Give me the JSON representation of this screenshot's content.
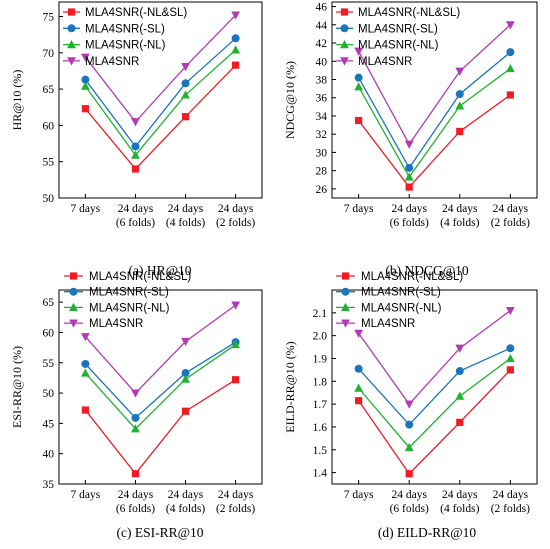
{
  "x_categories": [
    [
      "7 days"
    ],
    [
      "24 days",
      "(6 folds)"
    ],
    [
      "24 days",
      "(4 folds)"
    ],
    [
      "24 days",
      "(2 folds)"
    ]
  ],
  "series_styles": [
    {
      "name": "MLA4SNR(-NL&SL)",
      "color": "#ee1c25",
      "marker": "square"
    },
    {
      "name": "MLA4SNR(-SL)",
      "color": "#1a75bc",
      "marker": "circle"
    },
    {
      "name": "MLA4SNR(-NL)",
      "color": "#20b230",
      "marker": "triangle-up"
    },
    {
      "name": "MLA4SNR",
      "color": "#b33ab3",
      "marker": "triangle-down"
    }
  ],
  "chart_data": [
    {
      "type": "line",
      "title": "(a) HR@10",
      "xlabel": "",
      "ylabel": "HR@10 (%)",
      "ylim": [
        50,
        77
      ],
      "yticks": [
        50,
        55,
        60,
        65,
        70,
        75
      ],
      "ytick_labels": [
        "50",
        "55",
        "60",
        "65",
        "70",
        "75"
      ],
      "legend": "top-left",
      "series": [
        {
          "name": "MLA4SNR(-NL&SL)",
          "values": [
            62.3,
            54.0,
            61.2,
            68.3
          ]
        },
        {
          "name": "MLA4SNR(-SL)",
          "values": [
            66.3,
            57.1,
            65.8,
            72.0
          ]
        },
        {
          "name": "MLA4SNR(-NL)",
          "values": [
            65.4,
            55.9,
            64.2,
            70.4
          ]
        },
        {
          "name": "MLA4SNR",
          "values": [
            69.4,
            60.5,
            68.1,
            75.2
          ]
        }
      ]
    },
    {
      "type": "line",
      "title": "(b) NDCG@10",
      "xlabel": "",
      "ylabel": "NDCG@10 (%)",
      "ylim": [
        25,
        46.5
      ],
      "yticks": [
        26,
        28,
        30,
        32,
        34,
        36,
        38,
        40,
        42,
        44,
        46
      ],
      "ytick_labels": [
        "26",
        "28",
        "30",
        "32",
        "34",
        "36",
        "38",
        "40",
        "42",
        "44",
        "46"
      ],
      "legend": "top-left",
      "series": [
        {
          "name": "MLA4SNR(-NL&SL)",
          "values": [
            33.5,
            26.2,
            32.3,
            36.3
          ]
        },
        {
          "name": "MLA4SNR(-SL)",
          "values": [
            38.2,
            28.3,
            36.4,
            41.0
          ]
        },
        {
          "name": "MLA4SNR(-NL)",
          "values": [
            37.2,
            27.3,
            35.1,
            39.2
          ]
        },
        {
          "name": "MLA4SNR",
          "values": [
            41.1,
            30.9,
            38.9,
            44.0
          ]
        }
      ]
    },
    {
      "type": "line",
      "title": "(c) ESI-RR@10",
      "xlabel": "",
      "ylabel": "ESI-RR@10 (%)",
      "ylim": [
        35,
        67
      ],
      "yticks": [
        35,
        40,
        45,
        50,
        55,
        60,
        65
      ],
      "ytick_labels": [
        "35",
        "40",
        "45",
        "50",
        "55",
        "60",
        "65"
      ],
      "legend": "top-left",
      "series": [
        {
          "name": "MLA4SNR(-NL&SL)",
          "values": [
            47.2,
            36.7,
            47.0,
            52.2
          ]
        },
        {
          "name": "MLA4SNR(-SL)",
          "values": [
            54.8,
            45.9,
            53.3,
            58.4
          ]
        },
        {
          "name": "MLA4SNR(-NL)",
          "values": [
            53.3,
            44.1,
            52.3,
            58.0
          ]
        },
        {
          "name": "MLA4SNR",
          "values": [
            59.3,
            50.0,
            58.5,
            64.5
          ]
        }
      ]
    },
    {
      "type": "line",
      "title": "(d) EILD-RR@10",
      "xlabel": "",
      "ylabel": "EILD-RR@10 (%)",
      "ylim": [
        1.35,
        2.2
      ],
      "yticks": [
        1.4,
        1.5,
        1.6,
        1.7,
        1.8,
        1.9,
        2.0,
        2.1
      ],
      "ytick_labels": [
        "1.4",
        "1.5",
        "1.6",
        "1.7",
        "1.8",
        "1.9",
        "2.0",
        "2.1"
      ],
      "legend": "top-left",
      "series": [
        {
          "name": "MLA4SNR(-NL&SL)",
          "values": [
            1.715,
            1.395,
            1.62,
            1.85
          ]
        },
        {
          "name": "MLA4SNR(-SL)",
          "values": [
            1.855,
            1.61,
            1.845,
            1.945
          ]
        },
        {
          "name": "MLA4SNR(-NL)",
          "values": [
            1.77,
            1.51,
            1.735,
            1.9
          ]
        },
        {
          "name": "MLA4SNR",
          "values": [
            2.01,
            1.7,
            1.945,
            2.11
          ]
        }
      ]
    }
  ]
}
